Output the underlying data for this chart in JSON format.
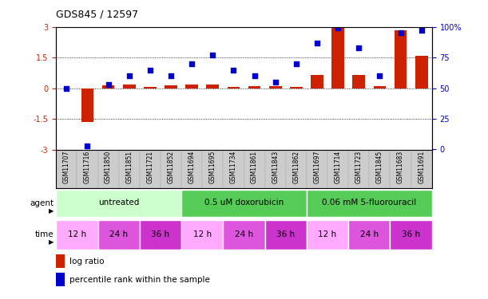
{
  "title": "GDS845 / 12597",
  "samples": [
    "GSM11707",
    "GSM11716",
    "GSM11850",
    "GSM11851",
    "GSM11721",
    "GSM11852",
    "GSM11694",
    "GSM11695",
    "GSM11734",
    "GSM11861",
    "GSM11843",
    "GSM11862",
    "GSM11697",
    "GSM11714",
    "GSM11723",
    "GSM11845",
    "GSM11683",
    "GSM11691"
  ],
  "log_ratio": [
    0.0,
    -1.65,
    0.15,
    0.2,
    0.08,
    0.15,
    0.2,
    0.18,
    0.08,
    0.1,
    0.1,
    0.08,
    0.65,
    3.0,
    0.65,
    0.1,
    2.85,
    1.6
  ],
  "percentile": [
    50,
    3,
    53,
    60,
    65,
    60,
    70,
    77,
    65,
    60,
    55,
    70,
    87,
    99,
    83,
    60,
    95,
    97
  ],
  "ylim_left": [
    -3,
    3
  ],
  "yticks_left": [
    -3,
    -1.5,
    0,
    1.5,
    3
  ],
  "yticks_right": [
    0,
    25,
    50,
    75,
    100
  ],
  "hlines": [
    -1.5,
    0,
    1.5
  ],
  "bar_color": "#cc2200",
  "scatter_color": "#0000cc",
  "agent_groups": [
    {
      "label": "untreated",
      "start": 0,
      "end": 6,
      "color": "#ccffcc"
    },
    {
      "label": "0.5 uM doxorubicin",
      "start": 6,
      "end": 12,
      "color": "#55cc55"
    },
    {
      "label": "0.06 mM 5-fluorouracil",
      "start": 12,
      "end": 18,
      "color": "#55cc55"
    }
  ],
  "time_groups": [
    {
      "label": "12 h",
      "start": 0,
      "end": 2,
      "color": "#ffaaff"
    },
    {
      "label": "24 h",
      "start": 2,
      "end": 4,
      "color": "#dd55dd"
    },
    {
      "label": "36 h",
      "start": 4,
      "end": 6,
      "color": "#cc33cc"
    },
    {
      "label": "12 h",
      "start": 6,
      "end": 8,
      "color": "#ffaaff"
    },
    {
      "label": "24 h",
      "start": 8,
      "end": 10,
      "color": "#dd55dd"
    },
    {
      "label": "36 h",
      "start": 10,
      "end": 12,
      "color": "#cc33cc"
    },
    {
      "label": "12 h",
      "start": 12,
      "end": 14,
      "color": "#ffaaff"
    },
    {
      "label": "24 h",
      "start": 14,
      "end": 16,
      "color": "#dd55dd"
    },
    {
      "label": "36 h",
      "start": 16,
      "end": 18,
      "color": "#cc33cc"
    }
  ],
  "legend_bar_label": "log ratio",
  "legend_scatter_label": "percentile rank within the sample",
  "agent_label": "agent",
  "time_label": "time",
  "bar_color_hex": "#cc2200",
  "scatter_color_hex": "#0000cc",
  "label_area_color": "#dddddd",
  "sample_bg_color": "#cccccc"
}
